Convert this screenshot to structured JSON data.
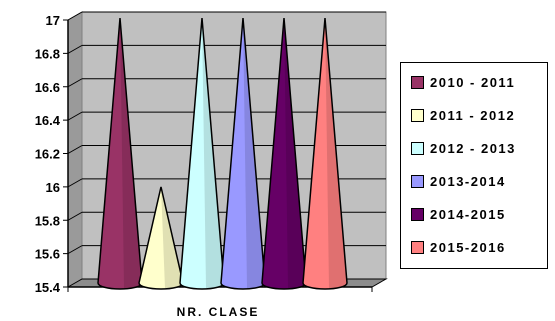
{
  "chart_data": {
    "type": "bar",
    "bar_shape": "cone",
    "xlabel": "NR. CLASE",
    "ylabel": "",
    "ylim": [
      15.4,
      17
    ],
    "yticks": [
      "17",
      "16.8",
      "16.6",
      "16.4",
      "16.2",
      "16",
      "15.8",
      "15.6",
      "15.4"
    ],
    "grid": true,
    "legend_position": "right",
    "series": [
      {
        "name": "2010 - 2011",
        "values": [
          17
        ],
        "color": "#993366"
      },
      {
        "name": "2011 - 2012",
        "values": [
          16
        ],
        "color": "#FFFFCC"
      },
      {
        "name": "2012 - 2013",
        "values": [
          17
        ],
        "color": "#CCFFFF"
      },
      {
        "name": "2013-2014",
        "values": [
          17
        ],
        "color": "#9999FF"
      },
      {
        "name": "2014-2015",
        "values": [
          17
        ],
        "color": "#660066"
      },
      {
        "name": "2015-2016",
        "values": [
          17
        ],
        "color": "#FF8080"
      }
    ]
  }
}
